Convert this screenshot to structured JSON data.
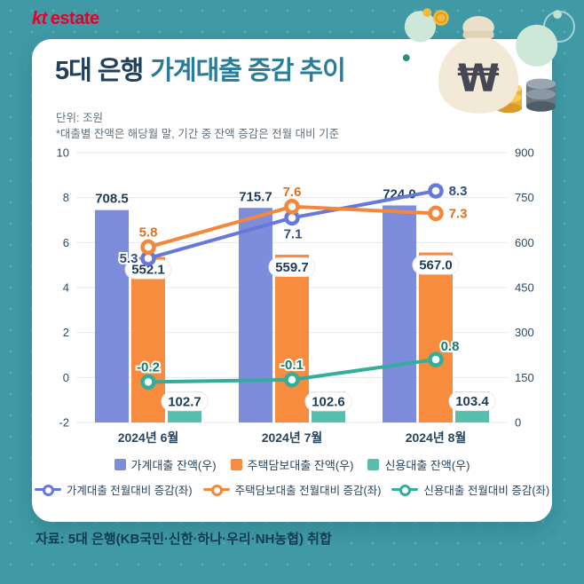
{
  "brand": {
    "kt": "kt",
    "estate": "estate"
  },
  "header": {
    "title_dark": "5대 은행",
    "title_teal": "가계대출 증감 추이",
    "unit_note": "단위: 조원",
    "footnote": "*대출별 잔액은 해당월 말, 기간 중 잔액 증감은 전월 대비 기준"
  },
  "source": "자료: 5대 은행(KB국민·신한·하나·우리·NH농협) 취합",
  "colors": {
    "background_teal": "#3F9AA6",
    "card": "#FFFFFF",
    "title_dark": "#21405C",
    "title_teal": "#2A7D99",
    "axis_text": "#2C4B66",
    "grid": "#E4E7EB",
    "logo_red": "#E4002B"
  },
  "chart_data": {
    "type": "bar+line combo",
    "title": "5대 은행 가계대출 증감 추이",
    "categories": [
      "2024년 6월",
      "2024년 7월",
      "2024년 8월"
    ],
    "left_axis": {
      "min": -2,
      "max": 10,
      "ticks": [
        10,
        8,
        6,
        4,
        2,
        0,
        -2
      ]
    },
    "right_axis": {
      "min": 0,
      "max": 900,
      "ticks": [
        900,
        750,
        600,
        450,
        300,
        150,
        0
      ]
    },
    "bar_series": [
      {
        "name": "가계대출 잔액(우)",
        "axis": "right",
        "color": "#7D8CDB",
        "values": [
          708.5,
          715.7,
          724.0
        ]
      },
      {
        "name": "주택담보대출 잔액(우)",
        "axis": "right",
        "color": "#F78C3E",
        "values": [
          552.1,
          559.7,
          567.0
        ]
      },
      {
        "name": "신용대출 잔액(우)",
        "axis": "right",
        "color": "#58BFAE",
        "values": [
          102.7,
          102.6,
          103.4
        ]
      }
    ],
    "line_series": [
      {
        "name": "가계대출 전월대비 증감(좌)",
        "axis": "left",
        "color": "#6678D8",
        "label_color": "#2F4F86",
        "values": [
          5.3,
          7.1,
          8.3
        ]
      },
      {
        "name": "주택담보대출 전월대비 증감(좌)",
        "axis": "left",
        "color": "#F5873B",
        "label_color": "#E0711C",
        "values": [
          5.8,
          7.6,
          7.3
        ]
      },
      {
        "name": "신용대출 전월대비 증감(좌)",
        "axis": "left",
        "color": "#33AE9A",
        "label_color": "#0F7E6C",
        "values": [
          -0.2,
          -0.1,
          0.8
        ]
      }
    ],
    "grid": true,
    "legend_position": "bottom"
  }
}
